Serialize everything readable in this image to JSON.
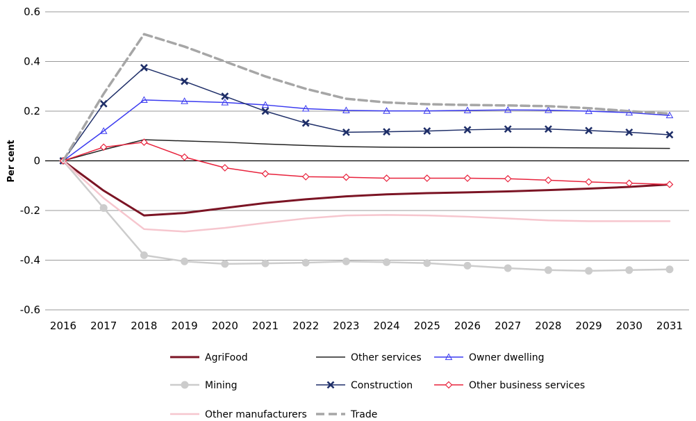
{
  "chart_data": {
    "type": "line",
    "title": "",
    "xlabel": "",
    "ylabel": "Per cent",
    "ylim": [
      -0.6,
      0.6
    ],
    "yticks": [
      0.6,
      0.4,
      0.2,
      0,
      -0.2,
      -0.4,
      -0.6
    ],
    "ytick_labels": [
      "0.6",
      "0.4",
      "0.2",
      "0",
      "-0.2",
      "-0.4",
      "-0.6"
    ],
    "grid": "horizontal",
    "legend_position": "bottom",
    "x": [
      "2016",
      "2017",
      "2018",
      "2019",
      "2020",
      "2021",
      "2022",
      "2023",
      "2024",
      "2025",
      "2026",
      "2027",
      "2028",
      "2029",
      "2030",
      "2031"
    ],
    "series": [
      {
        "name": "AgriFood",
        "color": "#7b1424",
        "width": 3,
        "dash": "",
        "marker": "none",
        "values": [
          0,
          -0.12,
          -0.22,
          -0.21,
          -0.19,
          -0.17,
          -0.155,
          -0.143,
          -0.135,
          -0.13,
          -0.127,
          -0.123,
          -0.118,
          -0.112,
          -0.105,
          -0.095
        ]
      },
      {
        "name": "Other services",
        "color": "#222222",
        "width": 1.5,
        "dash": "",
        "marker": "none",
        "values": [
          0,
          0.045,
          0.085,
          0.08,
          0.075,
          0.068,
          0.062,
          0.057,
          0.055,
          0.054,
          0.054,
          0.054,
          0.053,
          0.052,
          0.051,
          0.05
        ]
      },
      {
        "name": "Owner dwelling",
        "color": "#3a3af0",
        "width": 1.5,
        "dash": "",
        "marker": "triangle",
        "values": [
          0,
          0.12,
          0.245,
          0.24,
          0.235,
          0.225,
          0.21,
          0.203,
          0.201,
          0.201,
          0.203,
          0.205,
          0.204,
          0.2,
          0.194,
          0.183
        ]
      },
      {
        "name": "Mining",
        "color": "#cccccc",
        "width": 2.5,
        "dash": "",
        "marker": "circle",
        "values": [
          0,
          -0.19,
          -0.38,
          -0.405,
          -0.415,
          -0.413,
          -0.41,
          -0.405,
          -0.408,
          -0.412,
          -0.422,
          -0.432,
          -0.44,
          -0.443,
          -0.44,
          -0.437
        ]
      },
      {
        "name": "Construction",
        "color": "#1e2e68",
        "width": 1.5,
        "dash": "",
        "marker": "x",
        "values": [
          0,
          0.23,
          0.375,
          0.32,
          0.26,
          0.2,
          0.152,
          0.115,
          0.117,
          0.12,
          0.125,
          0.128,
          0.128,
          0.122,
          0.115,
          0.105
        ]
      },
      {
        "name": "Other business services",
        "color": "#e8223c",
        "width": 1.5,
        "dash": "",
        "marker": "diamond",
        "values": [
          0,
          0.055,
          0.075,
          0.015,
          -0.028,
          -0.052,
          -0.064,
          -0.066,
          -0.07,
          -0.07,
          -0.07,
          -0.072,
          -0.078,
          -0.085,
          -0.09,
          -0.095
        ]
      },
      {
        "name": "Other manufacturers",
        "color": "#f6c6ce",
        "width": 2.5,
        "dash": "",
        "marker": "none",
        "values": [
          0,
          -0.15,
          -0.275,
          -0.285,
          -0.27,
          -0.25,
          -0.232,
          -0.22,
          -0.218,
          -0.22,
          -0.225,
          -0.232,
          -0.24,
          -0.243,
          -0.243,
          -0.243
        ]
      },
      {
        "name": "Trade",
        "color": "#a6a6a6",
        "width": 3.5,
        "dash": "12,6",
        "marker": "none",
        "values": [
          0,
          0.27,
          0.51,
          0.46,
          0.4,
          0.34,
          0.29,
          0.25,
          0.235,
          0.228,
          0.225,
          0.223,
          0.22,
          0.212,
          0.2,
          0.19
        ]
      }
    ]
  }
}
